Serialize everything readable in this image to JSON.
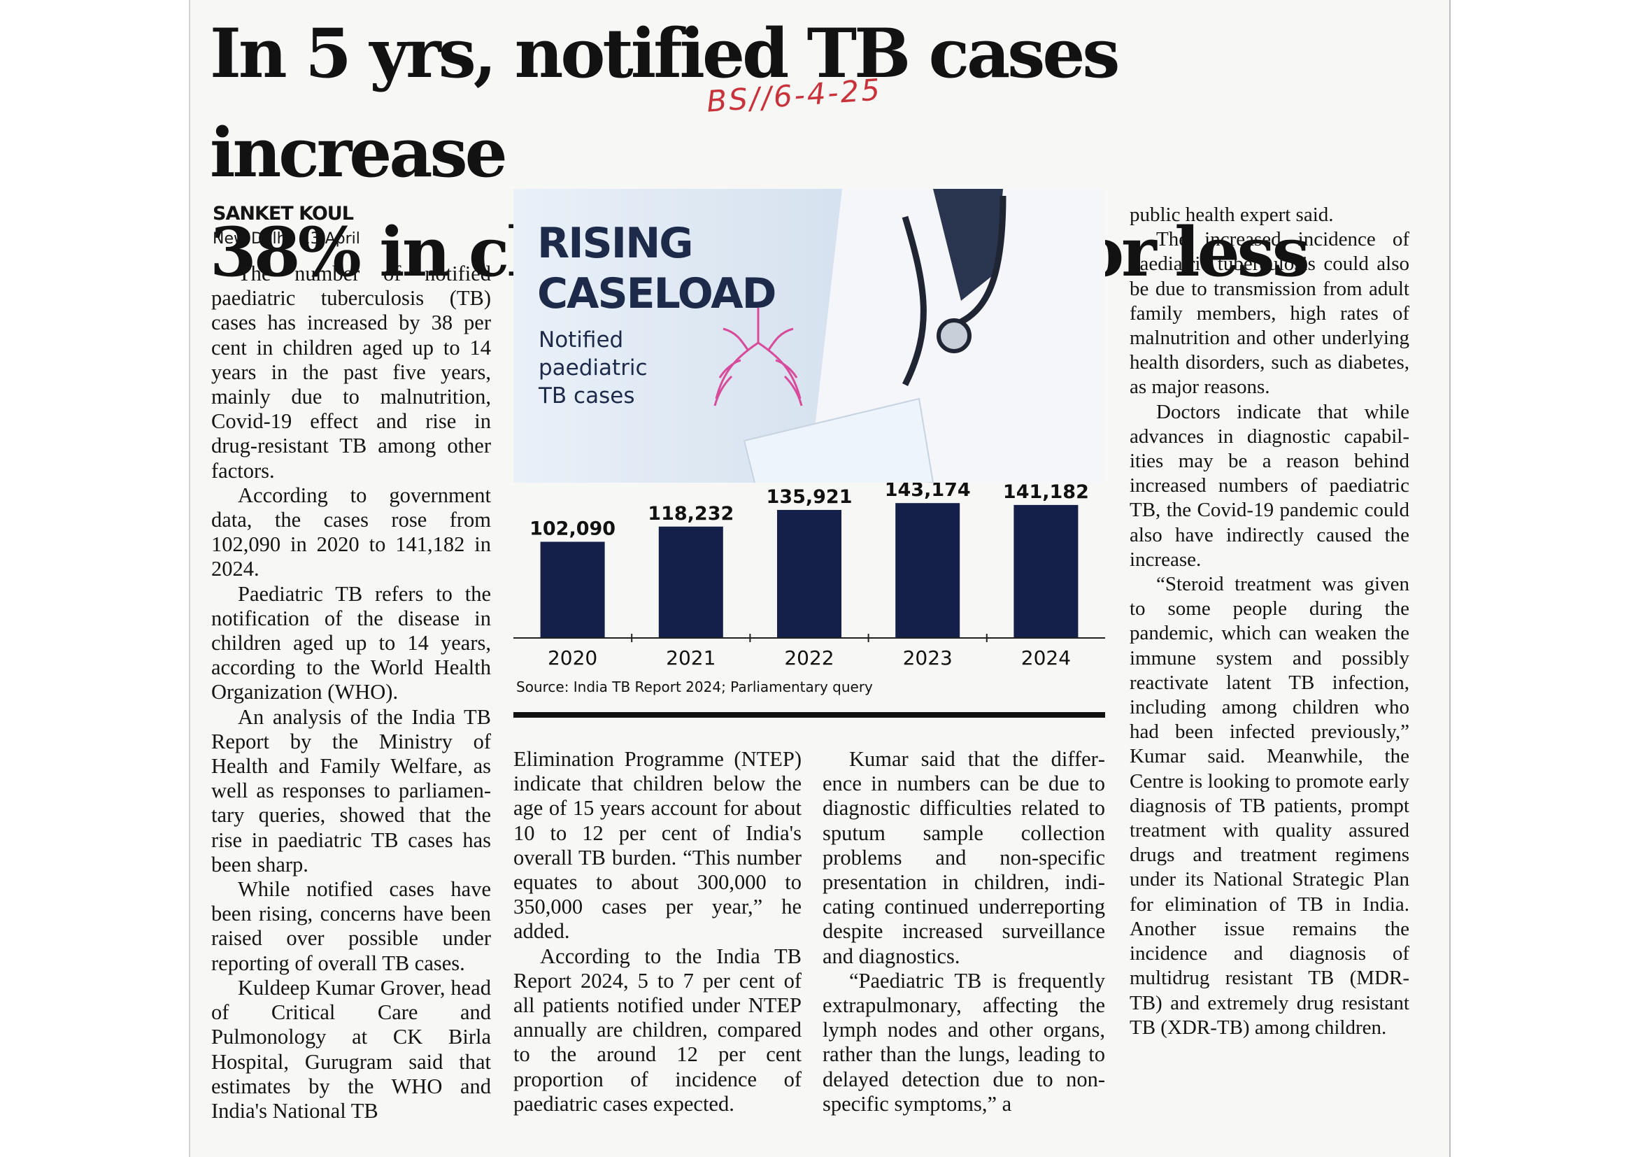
{
  "article": {
    "headline_line1": "In 5 yrs, notified TB cases increase",
    "headline_line2": "38% in children aged 14 or less",
    "handwritten_note": "BS//6-4-25",
    "author": "SANKET KOUL",
    "dateline": "New Delhi, 13 April",
    "col1_paragraphs": [
      "The number of notified paedi­atric tuberculosis (TB) cases has increased by 38 per cent in children aged up to 14 years in the past five years, mainly due to malnutrition, Covid-19 effect and rise in drug-resistant TB among other factors.",
      "According to government data, the cases rose from 102,090 in 2020 to 141,182 in 2024.",
      "Paediatric TB refers to the notification of the disease in children aged up to 14 years, according to the World Health Organization (WHO).",
      "An analysis of the India TB Report by the Ministry of Health and Family Welfare, as well as responses to parliamen­tary queries, showed that the rise in paediatric TB cases has been sharp.",
      "While notified cases have been rising, concerns have been raised over possible under reporting of overall TB cases.",
      "Kuldeep Kumar Grover, head of Critical Care and Pulmonology at CK Birla Hospital, Gurugram said that estimates by the WHO and India's National TB"
    ],
    "col2_paragraphs": [
      "Elimination Programme (NTEP) indicate that children below the age of 15 years account for about 10 to 12 per cent of India's overall TB bur­den. “This number equates to about 300,000 to 350,000 cases per year,” he added.",
      "According to the India TB Report 2024, 5 to 7 per cent of all patients notified under NTEP annually are children, compared to the around 12 per cent proportion of incidence of paediatric cases expected."
    ],
    "col3_paragraphs": [
      "Kumar said that the differ­ence in numbers can be due to diagnostic difficulties related to sputum sample collection problems and non-specific presentation in children, indi­cating continued underreport­ing despite increased surveil­lance and diagnostics.",
      "“Paediatric TB is frequently extrapulmonary, affecting the lymph nodes and other organs, rather than the lungs, leading to delayed detection due to non-specific symptoms,” a"
    ],
    "col4_paragraphs": [
      "public health expert said.",
      "The increased incidence of paediatric tuberculosis could also be due to transmission from adult family members, high rates of malnutrition and other underlying health dis­orders, such as diabetes, as major reasons.",
      "Doctors indicate that while advances in diagnostic capabil­ities may be a reason behind increased numbers of paedia­tric TB, the Covid-19 pandemic could also have indirectly caused the increase.",
      "“Steroid treatment was given to some people during the pandemic, which can weaken the immune system and possibly reactivate latent TB infection, including among children who had been infected previously,” Kumar said. Meanwhile, the Centre is looking to promote early dia­gnosis of TB patients, prompt treatment with quality assured drugs and treatment regimens under its National Strategic Plan for elimination of TB in India. Another issue remains the incidence and dia­gnosis of multidrug resistant TB (MDR-TB) and extremely drug resistant TB (XDR-TB) among children."
    ]
  },
  "graphic": {
    "title_line1": "RISING",
    "title_line2": "CASELOAD",
    "subtitle_line1": "Notified",
    "subtitle_line2": "paediatric",
    "subtitle_line3": "TB cases",
    "source": "Source: India TB Report 2024; Parliamentary query"
  },
  "chart_data": {
    "type": "bar",
    "title": "RISING CASELOAD",
    "subtitle": "Notified paediatric TB cases",
    "categories": [
      "2020",
      "2021",
      "2022",
      "2023",
      "2024"
    ],
    "values": [
      102090,
      118232,
      135921,
      143174,
      141182
    ],
    "value_labels": [
      "102,090",
      "118,232",
      "135,921",
      "143,174",
      "141,182"
    ],
    "xlabel": "",
    "ylabel": "",
    "ylim": [
      0,
      150000
    ],
    "grid": false,
    "bar_color": "#14204a"
  },
  "colors": {
    "headline": "#121212",
    "handwriting": "#c8323a",
    "graphic_text": "#1e2a4a",
    "bars": "#14204a"
  }
}
